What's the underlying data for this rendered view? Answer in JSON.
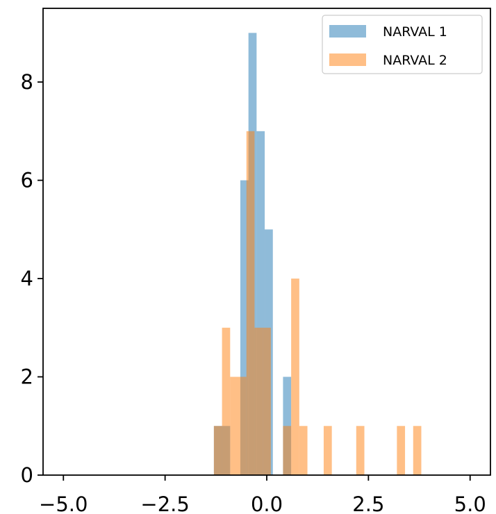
{
  "chart_data": {
    "type": "bar",
    "subtype": "overlapping-histogram",
    "title": "",
    "xlabel": "",
    "ylabel": "",
    "xlim": [
      -5.5,
      5.5
    ],
    "ylim": [
      0,
      9.5
    ],
    "x_ticks": [
      -5.0,
      -2.5,
      0.0,
      2.5,
      5.0
    ],
    "x_tick_labels": [
      "−5.0",
      "−2.5",
      "0.0",
      "2.5",
      "5.0"
    ],
    "y_ticks": [
      0,
      2,
      4,
      6,
      8
    ],
    "y_tick_labels": [
      "0",
      "2",
      "4",
      "6",
      "8"
    ],
    "grid": false,
    "legend_position": "top-right",
    "series": [
      {
        "name": "NARVAL 1",
        "color": "#1f77b4",
        "opacity": 0.5,
        "bins": [
          {
            "x0": -1.3,
            "x1": -0.9,
            "count": 1
          },
          {
            "x0": -0.65,
            "x1": -0.45,
            "count": 6
          },
          {
            "x0": -0.45,
            "x1": -0.25,
            "count": 9
          },
          {
            "x0": -0.25,
            "x1": -0.05,
            "count": 7
          },
          {
            "x0": -0.05,
            "x1": 0.15,
            "count": 5
          },
          {
            "x0": 0.4,
            "x1": 0.6,
            "count": 2
          }
        ]
      },
      {
        "name": "NARVAL 2",
        "color": "#ff7f0e",
        "opacity": 0.5,
        "bins": [
          {
            "x0": -1.3,
            "x1": -1.1,
            "count": 1
          },
          {
            "x0": -1.1,
            "x1": -0.9,
            "count": 3
          },
          {
            "x0": -0.9,
            "x1": -0.7,
            "count": 2
          },
          {
            "x0": -0.7,
            "x1": -0.5,
            "count": 2
          },
          {
            "x0": -0.5,
            "x1": -0.3,
            "count": 7
          },
          {
            "x0": -0.3,
            "x1": -0.1,
            "count": 3
          },
          {
            "x0": -0.1,
            "x1": 0.1,
            "count": 3
          },
          {
            "x0": 0.4,
            "x1": 0.6,
            "count": 1
          },
          {
            "x0": 0.6,
            "x1": 0.8,
            "count": 4
          },
          {
            "x0": 0.8,
            "x1": 1.0,
            "count": 1
          },
          {
            "x0": 1.4,
            "x1": 1.6,
            "count": 1
          },
          {
            "x0": 2.2,
            "x1": 2.4,
            "count": 1
          },
          {
            "x0": 3.2,
            "x1": 3.4,
            "count": 1
          },
          {
            "x0": 3.6,
            "x1": 3.8,
            "count": 1
          }
        ]
      }
    ]
  }
}
